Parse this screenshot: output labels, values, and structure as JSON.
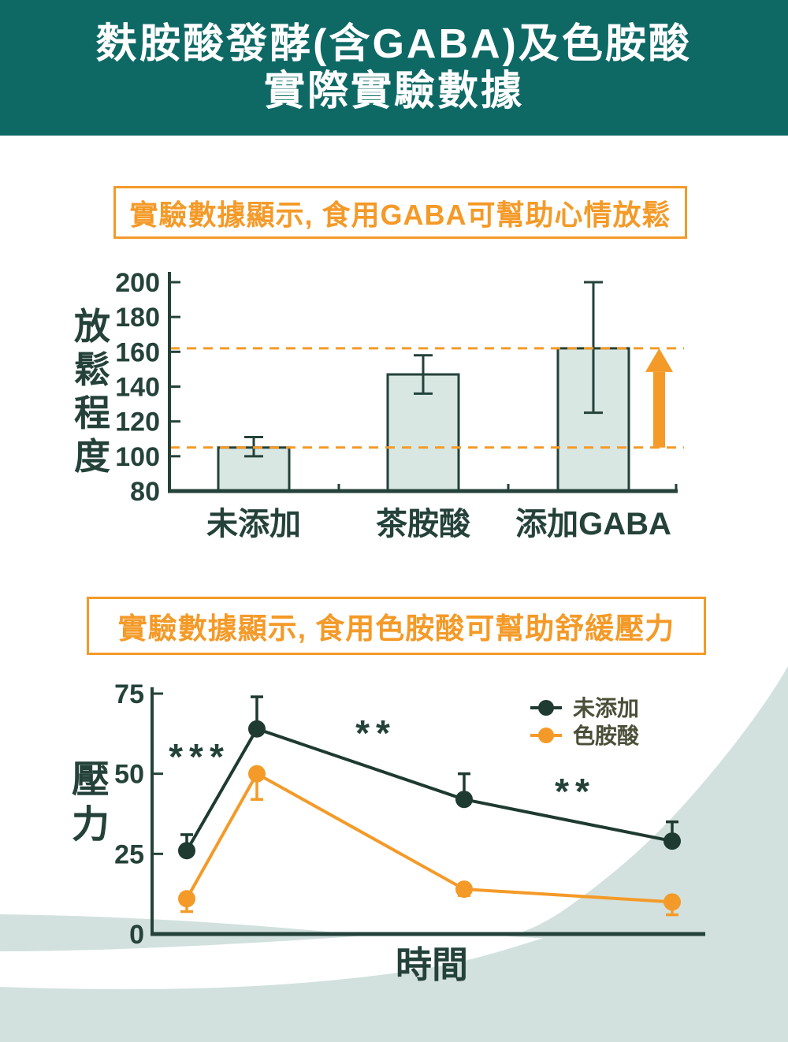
{
  "banner": {
    "title_line1": "麩胺酸發酵(含GABA)及色胺酸",
    "title_line2": "實際實驗數據"
  },
  "headings": {
    "relax": "實驗數據顯示, 食用GABA可幫助心情放鬆",
    "stress": "實驗數據顯示, 食用色胺酸可幫助舒緩壓力"
  },
  "colors": {
    "banner_teal": "#0E6965",
    "dark": "#24423A",
    "dark_series": "#1E3A31",
    "orange": "#F49A28",
    "bar_fill": "#D9E7E3",
    "wave_teal": "#D2E1DD",
    "legend_text": "#4A4F38",
    "white": "#FFFFFF"
  },
  "chart_data": [
    {
      "type": "bar",
      "title": "實驗數據顯示, 食用GABA可幫助心情放鬆",
      "categories": [
        "未添加",
        "茶胺酸",
        "添加GABA"
      ],
      "values": [
        105,
        147,
        162
      ],
      "error_bars": [
        {
          "low": 100,
          "high": 111
        },
        {
          "low": 136,
          "high": 158
        },
        {
          "low": 125,
          "high": 200
        }
      ],
      "ylabel": "放鬆程度",
      "yticks": [
        200,
        180,
        160,
        140,
        120,
        100,
        80
      ],
      "ylim": [
        80,
        200
      ],
      "grid": false,
      "reference_lines": [
        162,
        105
      ],
      "arrow": {
        "from": 105,
        "to": 162,
        "meaning": "increase-from-105-to-162"
      }
    },
    {
      "type": "line",
      "title": "實驗數據顯示, 食用色胺酸可幫助舒緩壓力",
      "xlabel": "時間",
      "ylabel": "壓力",
      "yticks": [
        75,
        50,
        25,
        0
      ],
      "ylim": [
        0,
        75
      ],
      "x_point_count": 4,
      "series": [
        {
          "name": "未添加",
          "color_key": "dark_series",
          "values": [
            26,
            64,
            42,
            29
          ],
          "error_high": [
            31,
            74,
            50,
            35
          ],
          "error_dir": "up"
        },
        {
          "name": "色胺酸",
          "color_key": "orange",
          "values": [
            11,
            50,
            14,
            10
          ],
          "error_low": [
            7,
            42,
            12,
            6
          ],
          "error_dir": "down"
        }
      ],
      "annotations": [
        {
          "text": "***"
        },
        {
          "text": "**"
        },
        {
          "text": "**"
        }
      ],
      "legend_position": "top-right"
    }
  ]
}
